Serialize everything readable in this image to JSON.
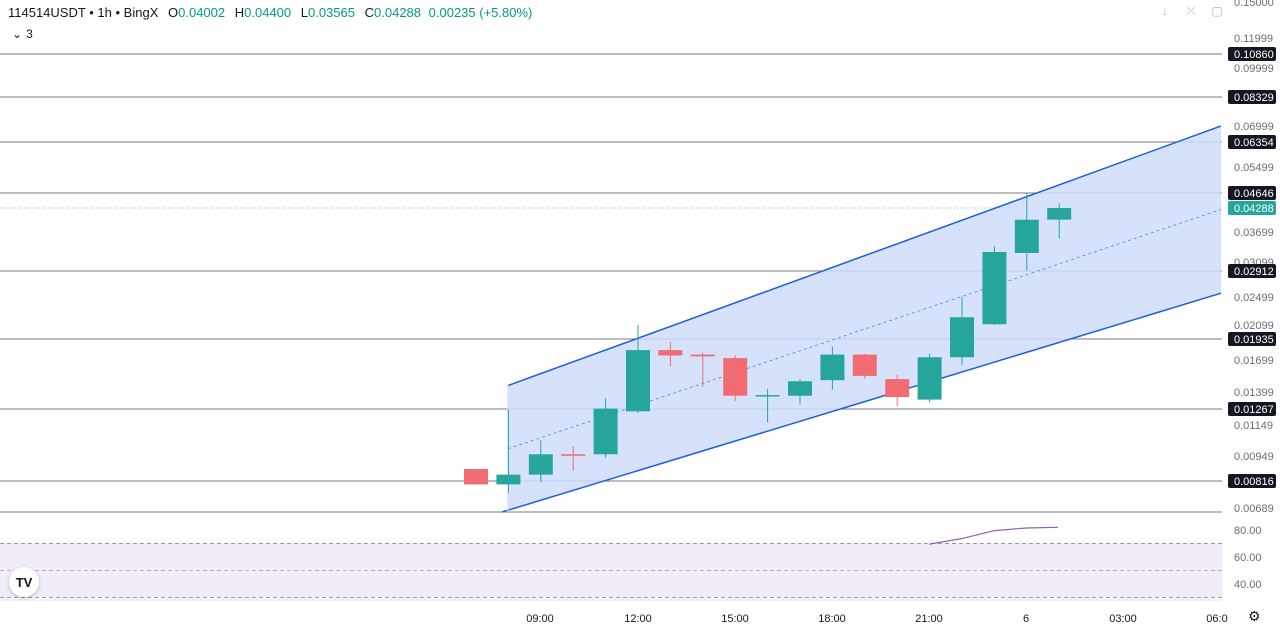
{
  "legend": {
    "symbol": "114514USDT",
    "interval": "1h",
    "exchange": "BingX",
    "open_label": "O",
    "open": "0.04002",
    "high_label": "H",
    "high": "0.04400",
    "low_label": "L",
    "low": "0.03565",
    "close_label": "C",
    "close": "0.04288",
    "change": "0.00235",
    "change_pct": "(+5.80%)"
  },
  "collapse": {
    "count": "3"
  },
  "colors": {
    "up": "#26a69a",
    "down": "#f06b72",
    "channel": "#1e5fd6",
    "channel_fill": "#cfdcfb",
    "rsi": "#8e5cb5",
    "line": "#131722"
  },
  "chart_data": {
    "type": "candlestick",
    "x_ticks": [
      "09:00",
      "12:00",
      "15:00",
      "18:00",
      "21:00",
      "6",
      "03:00",
      "06:0"
    ],
    "y_ticks": [
      "0.15000",
      "0.11999",
      "0.09999",
      "0.06999",
      "0.05499",
      "0.03699",
      "0.03099",
      "0.02499",
      "0.02099",
      "0.01699",
      "0.01399",
      "0.01149",
      "0.00949",
      "0.00689"
    ],
    "horizontal_levels": [
      "0.10860",
      "0.08329",
      "0.06354",
      "0.04646",
      "0.02912",
      "0.01935",
      "0.01267",
      "0.00816"
    ],
    "last_price": "0.04288",
    "candles": [
      {
        "o": 0.0088,
        "h": 0.0088,
        "l": 0.008,
        "c": 0.008
      },
      {
        "o": 0.008,
        "h": 0.0126,
        "l": 0.0076,
        "c": 0.0085
      },
      {
        "o": 0.0085,
        "h": 0.0105,
        "l": 0.0081,
        "c": 0.0096
      },
      {
        "o": 0.0096,
        "h": 0.0101,
        "l": 0.0087,
        "c": 0.0095
      },
      {
        "o": 0.0096,
        "h": 0.0135,
        "l": 0.0094,
        "c": 0.0127
      },
      {
        "o": 0.0125,
        "h": 0.021,
        "l": 0.0124,
        "c": 0.0181
      },
      {
        "o": 0.0181,
        "h": 0.019,
        "l": 0.0164,
        "c": 0.0175
      },
      {
        "o": 0.0176,
        "h": 0.0178,
        "l": 0.0145,
        "c": 0.0174
      },
      {
        "o": 0.0172,
        "h": 0.0175,
        "l": 0.0133,
        "c": 0.0137
      },
      {
        "o": 0.01365,
        "h": 0.0143,
        "l": 0.0117,
        "c": 0.01375
      },
      {
        "o": 0.0137,
        "h": 0.0152,
        "l": 0.013,
        "c": 0.015
      },
      {
        "o": 0.0151,
        "h": 0.0185,
        "l": 0.0142,
        "c": 0.0176
      },
      {
        "o": 0.0176,
        "h": 0.0177,
        "l": 0.0152,
        "c": 0.0155
      },
      {
        "o": 0.0152,
        "h": 0.0156,
        "l": 0.0129,
        "c": 0.0136
      },
      {
        "o": 0.0134,
        "h": 0.0177,
        "l": 0.0132,
        "c": 0.0173
      },
      {
        "o": 0.0173,
        "h": 0.025,
        "l": 0.0165,
        "c": 0.0221
      },
      {
        "o": 0.0211,
        "h": 0.0342,
        "l": 0.021,
        "c": 0.033
      },
      {
        "o": 0.0328,
        "h": 0.0465,
        "l": 0.0292,
        "c": 0.04
      },
      {
        "o": 0.04002,
        "h": 0.044,
        "l": 0.03565,
        "c": 0.04288
      }
    ],
    "channel": {
      "upper_start": 0.0146,
      "upper_end": 0.07,
      "lower_start": 0.0068,
      "lower_end": 0.0256
    },
    "rsi": {
      "y_ticks": [
        "80.00",
        "60.00",
        "40.00"
      ],
      "band": [
        70,
        30
      ],
      "mid": 50,
      "values": [
        69.5,
        73.5,
        79.5,
        81.5,
        82
      ]
    }
  }
}
